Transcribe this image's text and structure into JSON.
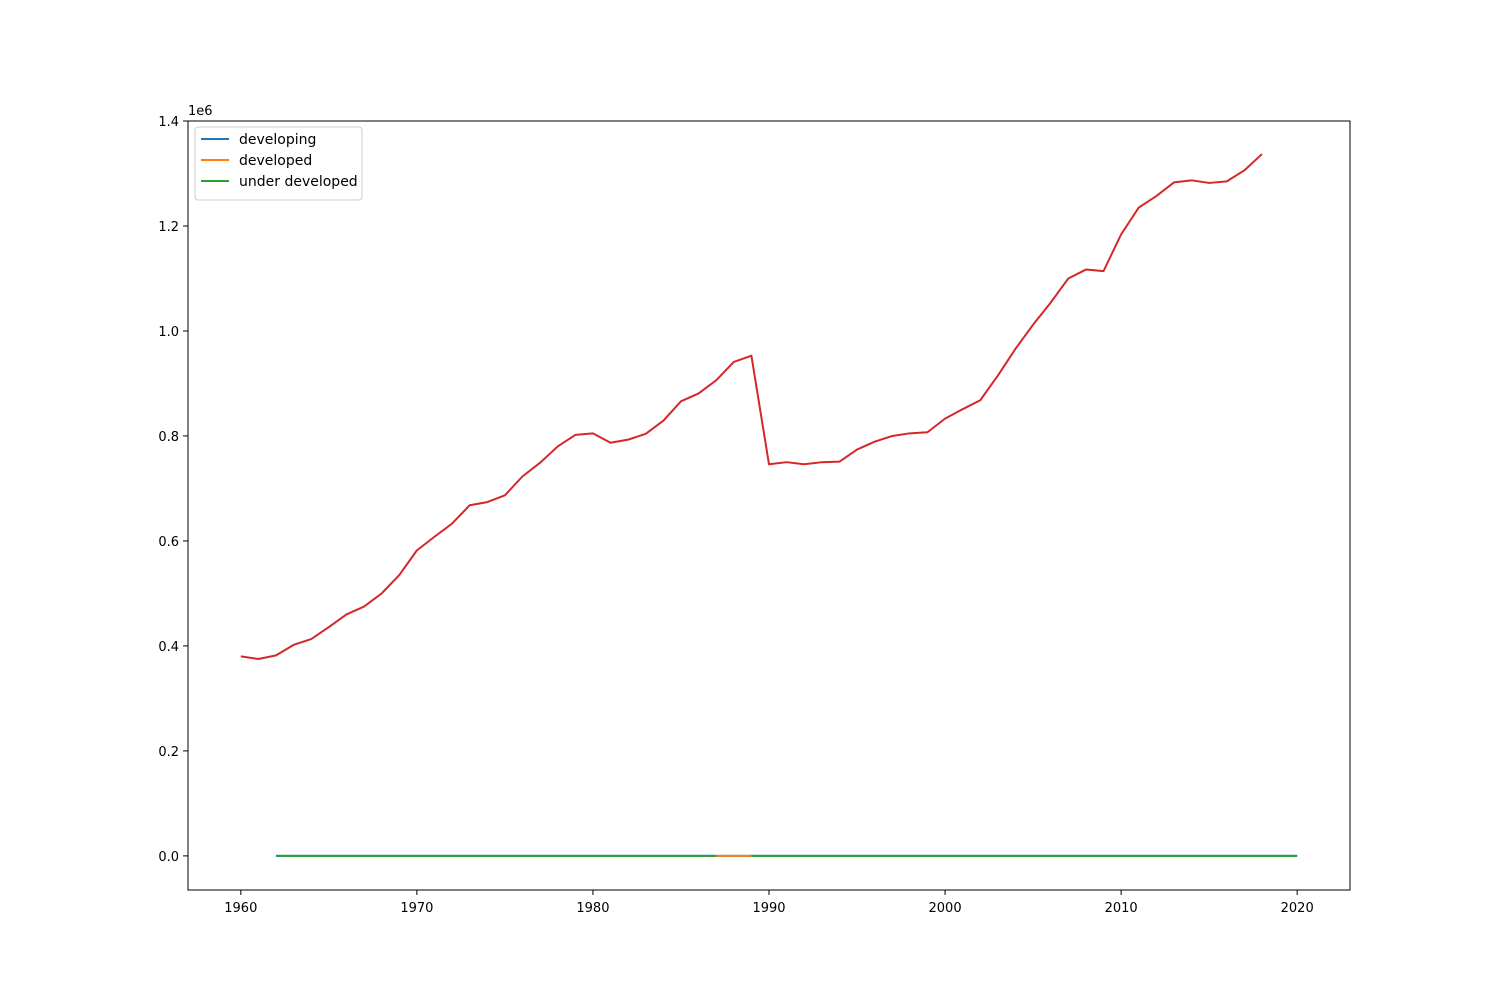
{
  "chart_data": {
    "type": "line",
    "title": "",
    "xlabel": "",
    "ylabel": "",
    "y_offset_label": "1e6",
    "xlim": [
      1957,
      2023
    ],
    "ylim": [
      -0.065,
      1.4
    ],
    "xticks": [
      1960,
      1970,
      1980,
      1990,
      2000,
      2010,
      2020
    ],
    "xtick_labels": [
      "1960",
      "1970",
      "1980",
      "1990",
      "2000",
      "2010",
      "2020"
    ],
    "yticks": [
      0.0,
      0.2,
      0.4,
      0.6,
      0.8,
      1.0,
      1.2,
      1.4
    ],
    "ytick_labels": [
      "0.0",
      "0.2",
      "0.4",
      "0.6",
      "0.8",
      "1.0",
      "1.2",
      "1.4"
    ],
    "grid": false,
    "legend": {
      "position": "top-left",
      "entries": [
        {
          "label": "developing",
          "color": "#1f77b4"
        },
        {
          "label": "developed",
          "color": "#ff7f0e"
        },
        {
          "label": "under developed",
          "color": "#2ca02c"
        }
      ]
    },
    "series": [
      {
        "color": "#1f77b4",
        "x": [
          1962,
          2020
        ],
        "y": [
          0,
          0
        ]
      },
      {
        "color": "#ff7f0e",
        "x": [
          1987,
          1989
        ],
        "y": [
          0,
          0
        ]
      },
      {
        "color": "#2ca02c",
        "segments": [
          {
            "x": [
              1962,
              1987
            ],
            "y": [
              0,
              0
            ]
          },
          {
            "x": [
              1989,
              2020
            ],
            "y": [
              0,
              0
            ]
          }
        ]
      },
      {
        "color": "#d62728",
        "x": [
          1960,
          1961,
          1962,
          1963,
          1964,
          1965,
          1966,
          1967,
          1968,
          1969,
          1970,
          1971,
          1972,
          1973,
          1974,
          1975,
          1976,
          1977,
          1978,
          1979,
          1980,
          1981,
          1982,
          1983,
          1984,
          1985,
          1986,
          1987,
          1988,
          1989,
          1990,
          1991,
          1992,
          1993,
          1994,
          1995,
          1996,
          1997,
          1998,
          1999,
          2000,
          2001,
          2002,
          2003,
          2004,
          2005,
          2006,
          2007,
          2008,
          2009,
          2010,
          2011,
          2012,
          2013,
          2014,
          2015,
          2016,
          2017,
          2018
        ],
        "y": [
          0.38,
          0.375,
          0.382,
          0.402,
          0.413,
          0.436,
          0.46,
          0.475,
          0.5,
          0.535,
          0.582,
          0.608,
          0.633,
          0.668,
          0.674,
          0.687,
          0.723,
          0.749,
          0.78,
          0.802,
          0.805,
          0.787,
          0.793,
          0.804,
          0.829,
          0.866,
          0.881,
          0.906,
          0.941,
          0.953,
          0.746,
          0.75,
          0.746,
          0.75,
          0.751,
          0.774,
          0.789,
          0.8,
          0.805,
          0.807,
          0.833,
          0.851,
          0.868,
          0.915,
          0.966,
          1.012,
          1.054,
          1.1,
          1.117,
          1.114,
          1.184,
          1.235,
          1.257,
          1.283,
          1.287,
          1.282,
          1.285,
          1.306,
          1.337
        ]
      }
    ]
  }
}
